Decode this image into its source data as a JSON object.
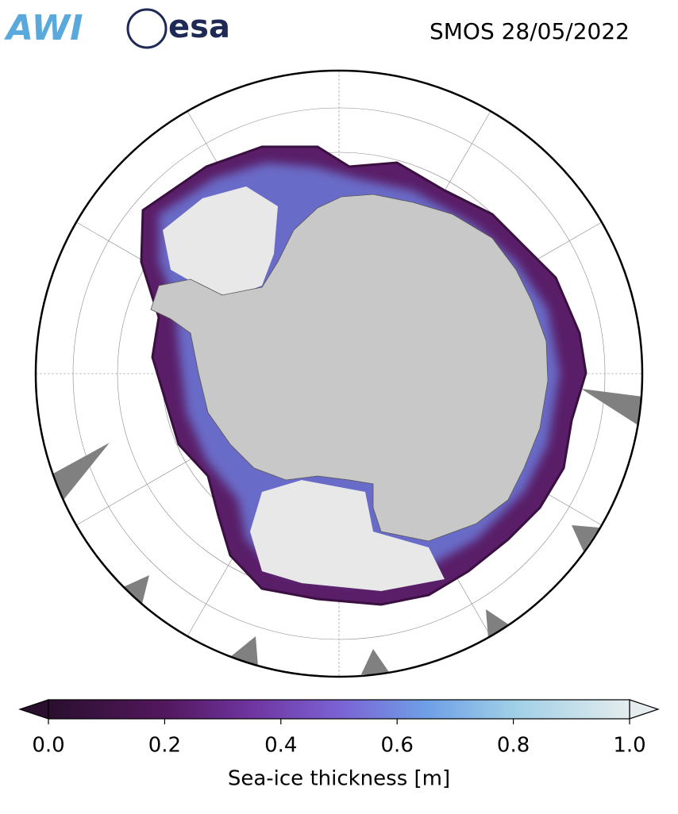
{
  "header": {
    "logos": [
      "AWI",
      "esa"
    ],
    "title": "SMOS 28/05/2022"
  },
  "colorbar": {
    "label": "Sea-ice thickness [m]",
    "lim": [
      0,
      1
    ],
    "ticks": [
      {
        "value": 0,
        "label": "0.0"
      },
      {
        "value": 0.2,
        "label": "0.2"
      },
      {
        "value": 0.4,
        "label": "0.4"
      },
      {
        "value": 0.6,
        "label": "0.6"
      },
      {
        "value": 0.8,
        "label": "0.8"
      },
      {
        "value": 1,
        "label": "1.0"
      }
    ]
  }
}
